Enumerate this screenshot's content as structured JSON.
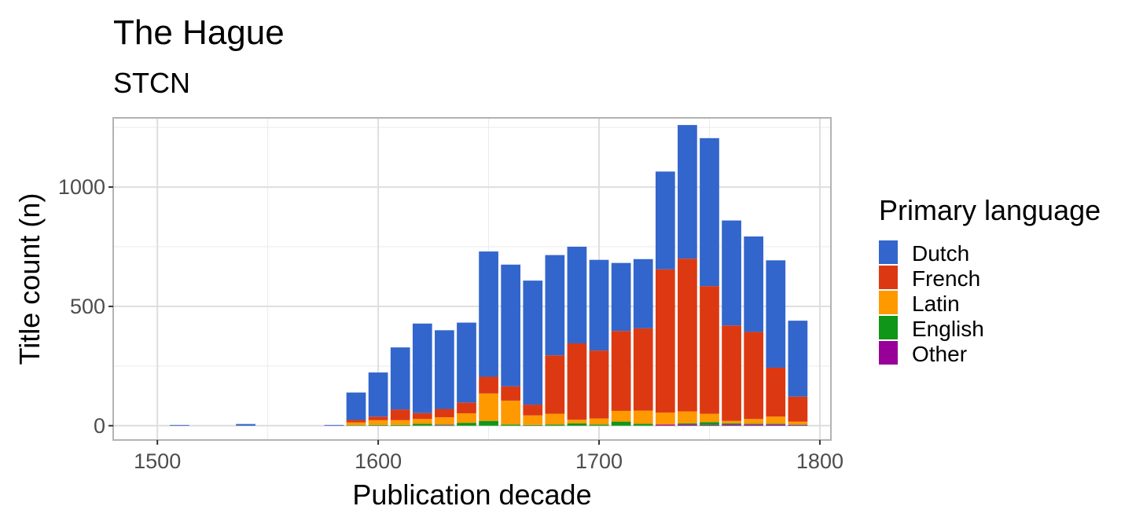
{
  "chart_data": {
    "type": "bar",
    "stacked": true,
    "title": "The Hague",
    "subtitle": "STCN",
    "xlabel": "Publication decade",
    "ylabel": "Title count (n)",
    "xlim": [
      1480,
      1805
    ],
    "ylim": [
      -60,
      1290
    ],
    "x_ticks": [
      1500,
      1600,
      1700,
      1800
    ],
    "y_ticks": [
      0,
      500,
      1000
    ],
    "grid": true,
    "legend_position": "right",
    "legend_title": "Primary language",
    "x": [
      1510,
      1540,
      1580,
      1590,
      1600,
      1610,
      1620,
      1630,
      1640,
      1650,
      1660,
      1670,
      1680,
      1690,
      1700,
      1710,
      1720,
      1730,
      1740,
      1750,
      1760,
      1770,
      1780,
      1790
    ],
    "series": [
      {
        "name": "Other",
        "color": "#990099",
        "values": [
          0,
          0,
          0,
          0,
          0,
          0,
          0,
          2,
          0,
          0,
          0,
          0,
          0,
          0,
          0,
          0,
          0,
          5,
          5,
          3,
          5,
          5,
          5,
          3
        ]
      },
      {
        "name": "English",
        "color": "#109618",
        "values": [
          0,
          0,
          0,
          2,
          3,
          3,
          8,
          3,
          12,
          20,
          5,
          3,
          5,
          10,
          5,
          17,
          8,
          0,
          5,
          12,
          5,
          3,
          3,
          2
        ]
      },
      {
        "name": "Latin",
        "color": "#FF9900",
        "values": [
          0,
          0,
          0,
          12,
          20,
          20,
          20,
          30,
          40,
          115,
          100,
          40,
          45,
          15,
          25,
          45,
          55,
          50,
          50,
          35,
          10,
          20,
          30,
          12
        ]
      },
      {
        "name": "French",
        "color": "#DC3912",
        "values": [
          0,
          0,
          0,
          10,
          15,
          45,
          25,
          35,
          45,
          70,
          60,
          45,
          245,
          320,
          285,
          335,
          345,
          600,
          640,
          535,
          400,
          365,
          205,
          105
        ]
      },
      {
        "name": "Dutch",
        "color": "#3366CC",
        "values": [
          3,
          7,
          3,
          115,
          185,
          260,
          375,
          330,
          335,
          525,
          510,
          520,
          420,
          405,
          380,
          285,
          290,
          410,
          560,
          620,
          440,
          400,
          450,
          318
        ]
      }
    ],
    "legend_order": [
      "Dutch",
      "French",
      "Latin",
      "English",
      "Other"
    ]
  }
}
